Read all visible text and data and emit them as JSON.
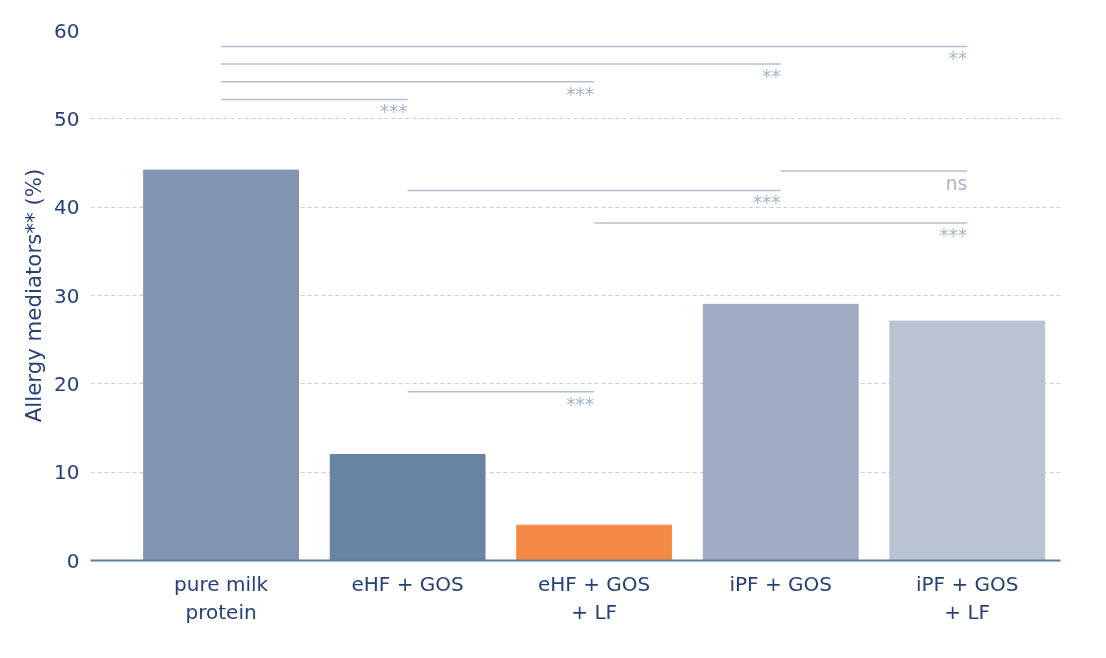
{
  "chart_data": {
    "type": "bar",
    "ylabel": "Allergy mediators** (%)",
    "categories": [
      "pure milk\nprotein",
      "eHF + GOS",
      "eHF + GOS\n+ LF",
      "iPF + GOS",
      "iPF + GOS\n+ LF"
    ],
    "values": [
      44.2,
      12.0,
      4.0,
      29.0,
      27.1
    ],
    "colors": [
      "#8295b0",
      "#6784a3",
      "#f58a47",
      "#9eabc2",
      "#b9c3d4"
    ],
    "ylim": [
      0,
      60
    ],
    "yticks": [
      0,
      10,
      20,
      30,
      40,
      50,
      60
    ],
    "grid": "y",
    "annotations": [
      "***",
      "***",
      "**",
      "**",
      "ns",
      "***",
      "***",
      "***"
    ]
  }
}
